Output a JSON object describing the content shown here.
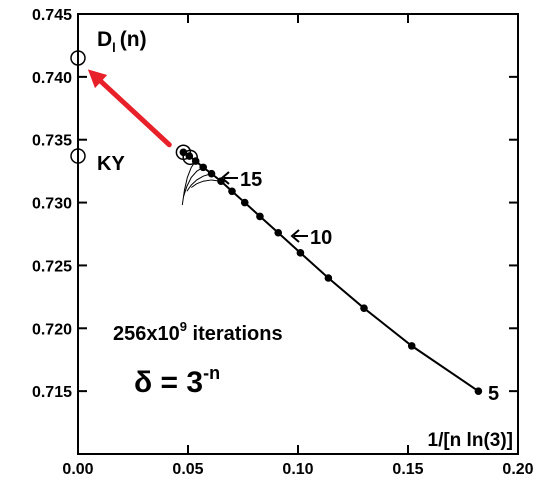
{
  "chart_data": {
    "type": "line",
    "xlabel": "1/[n ln(3)]",
    "ylabel": "",
    "xlim": [
      0.0,
      0.2
    ],
    "ylim": [
      0.71,
      0.745
    ],
    "x_ticks": [
      0.0,
      0.05,
      0.1,
      0.15,
      0.2
    ],
    "x_tick_labels": [
      "0.00",
      "0.05",
      "0.10",
      "0.15",
      "0.20"
    ],
    "y_ticks": [
      0.715,
      0.72,
      0.725,
      0.73,
      0.735,
      0.74,
      0.745
    ],
    "y_tick_labels": [
      "0.715",
      "0.720",
      "0.725",
      "0.730",
      "0.735",
      "0.740",
      "0.745"
    ],
    "grid": false,
    "series": [
      {
        "x": [
          0.182,
          0.1517,
          0.13,
          0.1138,
          0.1011,
          0.091,
          0.0827,
          0.0758,
          0.07,
          0.065,
          0.0607,
          0.0569,
          0.0535,
          0.0506,
          0.0479
        ],
        "y": [
          0.715,
          0.7186,
          0.7216,
          0.724,
          0.726,
          0.7276,
          0.7289,
          0.73,
          0.7309,
          0.7317,
          0.7323,
          0.7328,
          0.7333,
          0.7337,
          0.734
        ]
      }
    ],
    "fan_curves": [
      {
        "x": [
          0.065,
          0.0607,
          0.0569,
          0.054,
          0.0515
        ],
        "y": [
          0.7317,
          0.7318,
          0.7317,
          0.7315,
          0.7312
        ]
      },
      {
        "x": [
          0.0607,
          0.0569,
          0.054,
          0.0515,
          0.0495
        ],
        "y": [
          0.7323,
          0.7321,
          0.7318,
          0.7314,
          0.7309
        ]
      },
      {
        "x": [
          0.0569,
          0.054,
          0.0515,
          0.0495,
          0.048
        ],
        "y": [
          0.7328,
          0.7325,
          0.732,
          0.7313,
          0.7305
        ]
      },
      {
        "x": [
          0.0535,
          0.0515,
          0.0497,
          0.0484,
          0.0474
        ],
        "y": [
          0.7333,
          0.7328,
          0.732,
          0.731,
          0.7298
        ]
      }
    ],
    "circles": [
      {
        "x": 0.0,
        "y": 0.7415
      },
      {
        "x": 0.0,
        "y": 0.7337
      },
      {
        "x": 0.0479,
        "y": 0.734
      },
      {
        "x": 0.051,
        "y": 0.7336
      }
    ],
    "labels": {
      "dl": "D",
      "dl_sub": "l",
      "dl_arg": "(n)",
      "ky": "KY",
      "n15": "15",
      "n10": "10",
      "n5": "5",
      "iter_prefix": "256x10",
      "iter_exp": "9",
      "iter_suffix": " iterations",
      "delta": "δ = 3",
      "delta_exp": "-n"
    },
    "arrow_color": "#e8202a"
  }
}
